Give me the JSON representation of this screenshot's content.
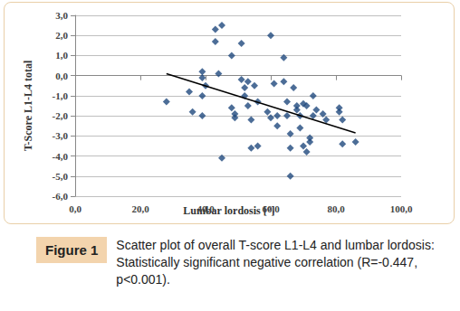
{
  "chart_data": {
    "type": "scatter",
    "xlabel": "Lumbar lordosis [°]",
    "ylabel": "T-Score L1-L4 total",
    "xlim": [
      0,
      100
    ],
    "xticks": [
      {
        "value": 0,
        "label": "0,0"
      },
      {
        "value": 20,
        "label": "20,0"
      },
      {
        "value": 40,
        "label": "40,0"
      },
      {
        "value": 60,
        "label": "60,0"
      },
      {
        "value": 80,
        "label": "80,0"
      },
      {
        "value": 100,
        "label": "100,0"
      }
    ],
    "ylim": [
      -6,
      3
    ],
    "yticks": [
      {
        "value": -6,
        "label": "-6,0"
      },
      {
        "value": -5,
        "label": "-5,0"
      },
      {
        "value": -4,
        "label": "-4,0"
      },
      {
        "value": -3,
        "label": "-3,0"
      },
      {
        "value": -2,
        "label": "-2,0"
      },
      {
        "value": -1,
        "label": "-1,0"
      },
      {
        "value": 0,
        "label": "0,0"
      },
      {
        "value": 1,
        "label": "1,0"
      },
      {
        "value": 2,
        "label": "2,0"
      },
      {
        "value": 3,
        "label": "3,0"
      }
    ],
    "grid": true,
    "series": [
      {
        "type": "scatter",
        "marker": "diamond",
        "color": "#1f497d",
        "x": [
          28,
          35,
          36,
          39,
          39,
          40,
          39,
          39,
          43,
          43,
          44,
          45,
          45,
          48,
          48,
          49,
          49,
          51,
          51,
          52,
          52,
          53,
          53,
          54,
          54,
          55,
          56,
          56,
          59,
          60,
          60,
          61,
          62,
          62,
          64,
          64,
          65,
          65,
          66,
          66,
          66,
          67,
          68,
          68,
          69,
          69,
          70,
          70,
          71,
          71,
          72,
          72,
          73,
          73,
          74,
          76,
          77,
          81,
          81,
          82,
          82,
          86
        ],
        "values": [
          -1.3,
          -0.8,
          -1.8,
          0.2,
          -0.1,
          -0.5,
          -1.0,
          -2.0,
          1.7,
          2.3,
          0.1,
          2.5,
          -4.1,
          1.0,
          -1.6,
          -1.9,
          -2.1,
          1.6,
          -0.2,
          -0.6,
          -1.0,
          -0.3,
          -1.5,
          -2.2,
          -3.6,
          -0.5,
          -3.5,
          -1.3,
          -1.8,
          2.0,
          -2.1,
          -0.4,
          -2.5,
          -2.0,
          0.9,
          -0.3,
          -1.3,
          -2.0,
          -2.9,
          -3.6,
          -5.0,
          -0.6,
          -1.7,
          -1.5,
          -2.0,
          -2.6,
          -3.5,
          -1.4,
          -3.8,
          -1.5,
          -3.1,
          -3.3,
          -1.0,
          -2.0,
          -1.7,
          -1.9,
          -2.2,
          -1.6,
          -1.8,
          -2.2,
          -3.4,
          -3.3
        ]
      },
      {
        "type": "line",
        "line_style": "solid",
        "color": "#000000",
        "x": [
          28,
          86
        ],
        "values": [
          0.1,
          -2.85
        ]
      }
    ],
    "caption": {
      "label": "Figure 1",
      "text": "Scatter plot of overall T-score L1-L4 and lumbar lordosis: Statistically significant negative correlation (R=-0.447, p<0.001)."
    }
  }
}
